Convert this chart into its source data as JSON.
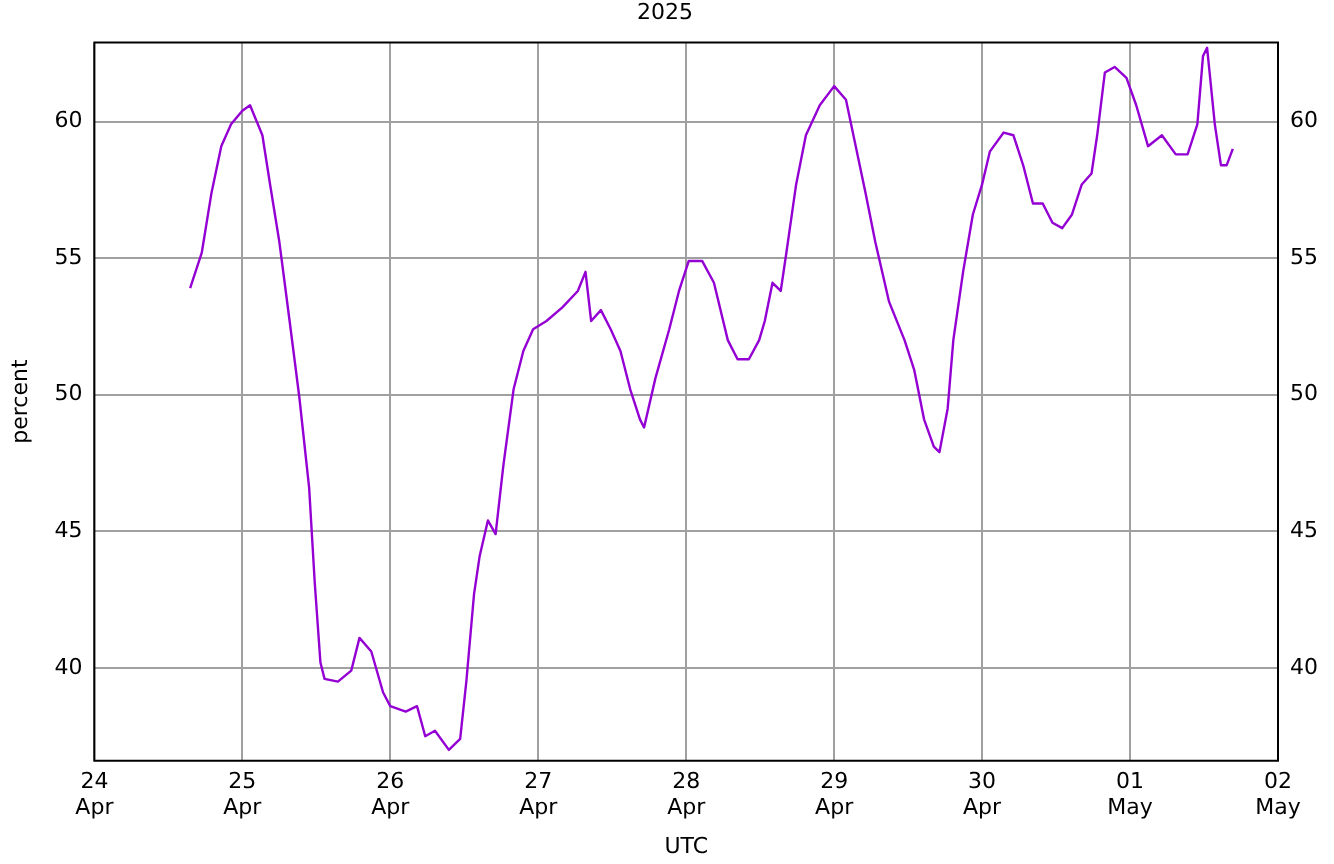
{
  "chart_data": {
    "type": "line",
    "title": "2025",
    "xlabel": "UTC",
    "ylabel": "percent",
    "x": [
      "2025-04-24T15:32",
      "2025-04-24T17:25",
      "2025-04-24T19:00",
      "2025-04-24T20:35",
      "2025-04-24T22:10",
      "2025-04-25T00:00",
      "2025-04-25T01:15",
      "2025-04-25T03:15",
      "2025-04-25T04:30",
      "2025-04-25T06:00",
      "2025-04-25T07:40",
      "2025-04-25T09:15",
      "2025-04-25T10:50",
      "2025-04-25T11:45",
      "2025-04-25T12:40",
      "2025-04-25T13:20",
      "2025-04-25T15:30",
      "2025-04-25T17:40",
      "2025-04-25T19:00",
      "2025-04-25T20:55",
      "2025-04-25T22:50",
      "2025-04-26T00:00",
      "2025-04-26T02:30",
      "2025-04-26T04:20",
      "2025-04-26T05:40",
      "2025-04-26T07:15",
      "2025-04-26T09:30",
      "2025-04-26T11:20",
      "2025-04-26T12:20",
      "2025-04-26T13:35",
      "2025-04-26T14:30",
      "2025-04-26T15:50",
      "2025-04-26T17:05",
      "2025-04-26T18:20",
      "2025-04-26T20:00",
      "2025-04-26T21:35",
      "2025-04-26T23:10",
      "2025-04-27T01:20",
      "2025-04-27T03:55",
      "2025-04-27T06:25",
      "2025-04-27T07:40",
      "2025-04-27T08:35",
      "2025-04-27T10:10",
      "2025-04-27T11:45",
      "2025-04-27T13:20",
      "2025-04-27T14:55",
      "2025-04-27T16:30",
      "2025-04-27T17:10",
      "2025-04-27T19:00",
      "2025-04-27T21:15",
      "2025-04-27T22:50",
      "2025-04-28T00:25",
      "2025-04-28T02:35",
      "2025-04-28T04:30",
      "2025-04-28T06:45",
      "2025-04-28T08:20",
      "2025-04-28T10:10",
      "2025-04-28T11:50",
      "2025-04-28T12:45",
      "2025-04-28T14:00",
      "2025-04-28T15:20",
      "2025-04-28T16:15",
      "2025-04-28T17:50",
      "2025-04-28T19:25",
      "2025-04-28T21:40",
      "2025-04-29T00:00",
      "2025-04-29T01:55",
      "2025-04-29T03:30",
      "2025-04-29T05:05",
      "2025-04-29T06:40",
      "2025-04-29T08:55",
      "2025-04-29T11:25",
      "2025-04-29T13:00",
      "2025-04-29T14:35",
      "2025-04-29T16:10",
      "2025-04-29T17:05",
      "2025-04-29T18:25",
      "2025-04-29T19:20",
      "2025-04-29T20:55",
      "2025-04-29T22:30",
      "2025-04-30T00:00",
      "2025-04-30T01:15",
      "2025-04-30T03:30",
      "2025-04-30T05:05",
      "2025-04-30T06:40",
      "2025-04-30T08:15",
      "2025-04-30T09:50",
      "2025-04-30T11:25",
      "2025-04-30T13:00",
      "2025-04-30T14:35",
      "2025-04-30T16:10",
      "2025-04-30T17:45",
      "2025-04-30T18:40",
      "2025-04-30T19:55",
      "2025-04-30T21:30",
      "2025-04-30T23:25",
      "2025-05-01T01:00",
      "2025-05-01T02:55",
      "2025-05-01T05:10",
      "2025-05-01T07:25",
      "2025-05-01T09:20",
      "2025-05-01T10:55",
      "2025-05-01T11:50",
      "2025-05-01T12:30",
      "2025-05-01T13:45",
      "2025-05-01T14:45",
      "2025-05-01T15:40",
      "2025-05-01T16:40"
    ],
    "series": [
      {
        "color": "#9400d3",
        "values": [
          53.9,
          55.2,
          57.4,
          59.1,
          59.9,
          60.4,
          60.6,
          59.5,
          57.7,
          55.6,
          52.7,
          49.9,
          46.6,
          43.1,
          40.2,
          39.6,
          39.5,
          39.9,
          41.1,
          40.6,
          39.1,
          38.6,
          38.4,
          38.6,
          37.5,
          37.7,
          37.0,
          37.4,
          39.5,
          42.7,
          44.1,
          45.4,
          44.9,
          47.4,
          50.2,
          51.6,
          52.4,
          52.7,
          53.2,
          53.8,
          54.5,
          52.7,
          53.1,
          52.4,
          51.6,
          50.2,
          49.1,
          48.8,
          50.6,
          52.4,
          53.8,
          54.9,
          54.9,
          54.1,
          52.0,
          51.3,
          51.3,
          52.0,
          52.7,
          54.1,
          53.8,
          55.2,
          57.7,
          59.5,
          60.6,
          61.3,
          60.8,
          59.1,
          57.4,
          55.6,
          53.4,
          52.0,
          50.9,
          49.1,
          48.1,
          47.9,
          49.5,
          52.0,
          54.5,
          56.6,
          57.7,
          58.9,
          59.6,
          59.5,
          58.4,
          57.0,
          57.0,
          56.3,
          56.1,
          56.6,
          57.7,
          58.1,
          59.5,
          61.8,
          62.0,
          61.6,
          60.6,
          59.1,
          59.5,
          58.8,
          58.8,
          59.9,
          62.4,
          62.7,
          59.9,
          58.4,
          58.4,
          59.0
        ]
      }
    ],
    "xlim": [
      "2025-04-24",
      "2025-05-02"
    ],
    "xticks": [
      {
        "value": "2025-04-24",
        "label": "24\nApr"
      },
      {
        "value": "2025-04-25",
        "label": "25\nApr"
      },
      {
        "value": "2025-04-26",
        "label": "26\nApr"
      },
      {
        "value": "2025-04-27",
        "label": "27\nApr"
      },
      {
        "value": "2025-04-28",
        "label": "28\nApr"
      },
      {
        "value": "2025-04-29",
        "label": "29\nApr"
      },
      {
        "value": "2025-04-30",
        "label": "30\nApr"
      },
      {
        "value": "2025-05-01",
        "label": "01\nMay"
      },
      {
        "value": "2025-05-02",
        "label": "02\nMay"
      }
    ],
    "ylim": [
      36.6,
      62.9
    ],
    "yticks": [
      40,
      45,
      50,
      55,
      60
    ],
    "y2lim": [
      36.6,
      62.9
    ],
    "y2ticks": [
      40,
      45,
      50,
      55,
      60
    ],
    "grid": true,
    "legend": false,
    "marker": "none",
    "line_style": "solid"
  }
}
